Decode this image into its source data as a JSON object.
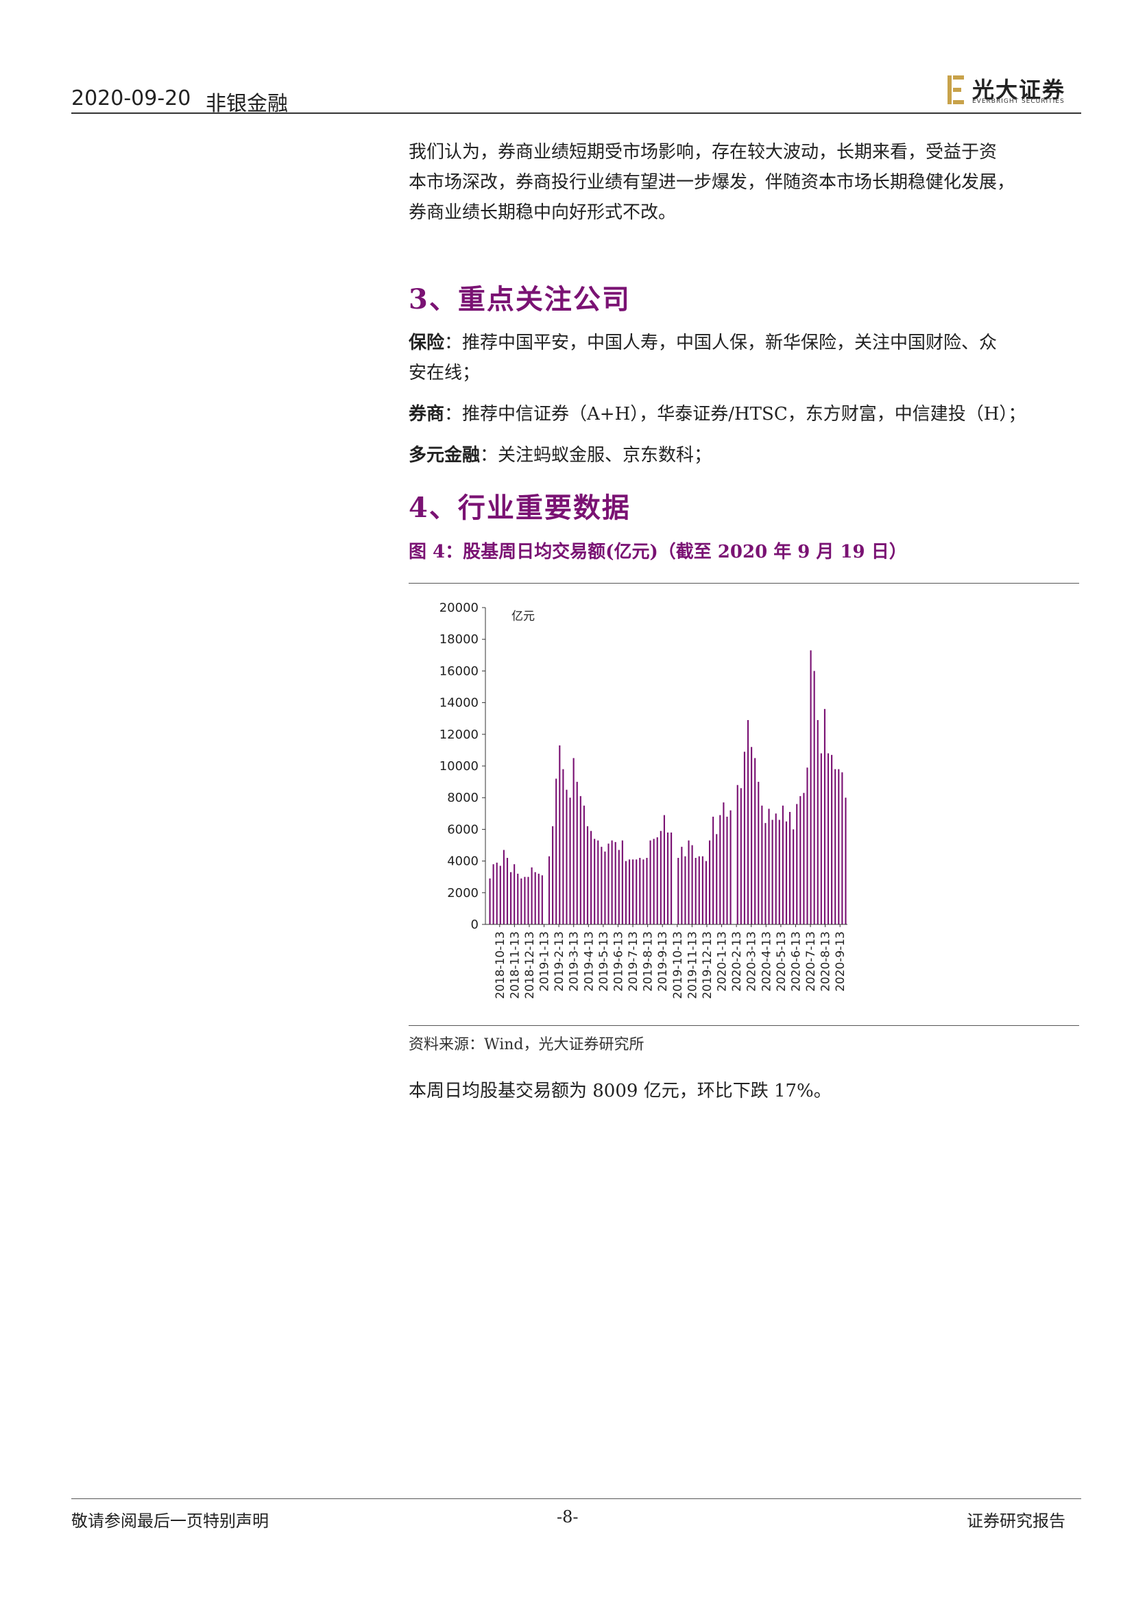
{
  "header": {
    "date": "2020-09-20",
    "sector": "非银金融",
    "logo_cn": "光大证券",
    "logo_en": "EVERBRIGHT SECURITIES",
    "logo_color": "#c8a24a"
  },
  "intro_paragraph": [
    "我们认为，券商业绩短期受市场影响，存在较大波动，长期来看，受益于资",
    "本市场深改，券商投行业绩有望进一步爆发，伴随资本市场长期稳健化发展，",
    "券商业绩长期稳中向好形式不改。"
  ],
  "section3": {
    "heading": "3、重点关注公司",
    "insurance_label": "保险",
    "insurance_line1": "：推荐中国平安，中国人寿，中国人保，新华保险，关注中国财险、众",
    "insurance_line2": "安在线；",
    "broker_label": "券商",
    "broker_text": "：推荐中信证券（A+H），华泰证券/HTSC，东方财富，中信建投（H）；",
    "diversified_label": "多元金融",
    "diversified_text": "：关注蚂蚁金服、京东数科；"
  },
  "section4": {
    "heading": "4、行业重要数据"
  },
  "figure": {
    "title": "图 4：股基周日均交易额(亿元)（截至 2020 年 9 月 19 日）",
    "source": "资料来源：Wind，光大证券研究所",
    "summary": "本周日均股基交易额为 8009 亿元，环比下跌 17%。"
  },
  "chart_data": {
    "type": "bar",
    "unit_label": "亿元",
    "bar_color": "#7a1273",
    "ylim": [
      0,
      20000
    ],
    "yticks": [
      0,
      2000,
      4000,
      6000,
      8000,
      10000,
      12000,
      14000,
      16000,
      18000,
      20000
    ],
    "xtick_labels": [
      "2018-10-13",
      "2018-11-13",
      "2018-12-13",
      "2019-1-13",
      "2019-2-13",
      "2019-3-13",
      "2019-4-13",
      "2019-5-13",
      "2019-6-13",
      "2019-7-13",
      "2019-8-13",
      "2019-9-13",
      "2019-10-13",
      "2019-11-13",
      "2019-12-13",
      "2020-1-13",
      "2020-2-13",
      "2020-3-13",
      "2020-4-13",
      "2020-5-13",
      "2020-6-13",
      "2020-7-13",
      "2020-8-13",
      "2020-9-13"
    ],
    "values": [
      2900,
      3800,
      3900,
      3700,
      4700,
      4200,
      3300,
      3800,
      3200,
      2900,
      3000,
      3000,
      3600,
      3300,
      3200,
      3100,
      0,
      4300,
      6200,
      9200,
      11300,
      9800,
      8500,
      8000,
      10500,
      9000,
      8100,
      7500,
      6200,
      5900,
      5400,
      5300,
      4900,
      4600,
      5100,
      5300,
      5200,
      4700,
      5300,
      4000,
      4100,
      4100,
      4100,
      4200,
      4100,
      4200,
      5300,
      5400,
      5500,
      5900,
      6900,
      5800,
      5800,
      0,
      4200,
      4900,
      4300,
      5300,
      5000,
      4200,
      4300,
      4300,
      4000,
      5300,
      6800,
      5700,
      6900,
      7700,
      6800,
      7200,
      0,
      8800,
      8600,
      10900,
      12900,
      11200,
      10500,
      9000,
      7500,
      6400,
      7300,
      6600,
      7000,
      6600,
      7500,
      6500,
      7100,
      6000,
      7600,
      8100,
      8300,
      9900,
      17300,
      16000,
      12900,
      10800,
      13600,
      10800,
      10700,
      9800,
      9800,
      9600,
      8000
    ]
  },
  "footer": {
    "left": "敬请参阅最后一页特别声明",
    "center": "-8-",
    "right": "证券研究报告"
  }
}
